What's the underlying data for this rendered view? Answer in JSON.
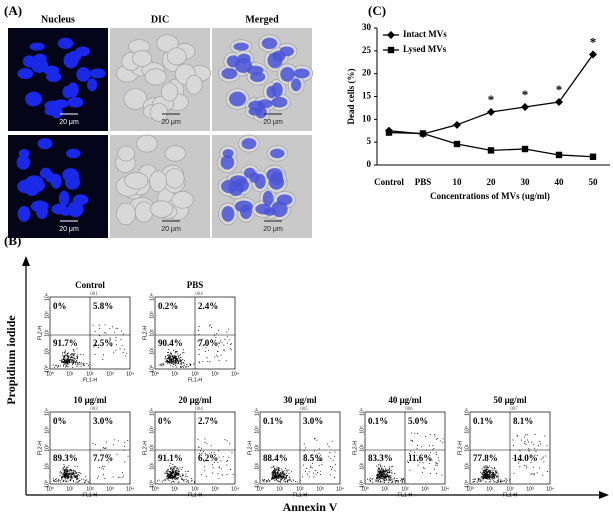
{
  "panel_a": {
    "label": "(A)",
    "columns": [
      "Nucleus",
      "DIC",
      "Merged"
    ],
    "scale_bar": "20 μm"
  },
  "panel_b": {
    "label": "(B)",
    "y_axis": "Propidium iodide",
    "x_axis": "Annexin V",
    "x_channel": "FL1-H",
    "y_channel": "FL2-H",
    "decade_ticks": [
      "10⁰",
      "10¹",
      "10²",
      "10³",
      "10⁴"
    ],
    "plots": [
      {
        "title": "Control",
        "id": "001",
        "quadrants": {
          "ul": "0%",
          "ur": "5.8%",
          "ll": "91.7%",
          "lr": "2.5%"
        }
      },
      {
        "title": "PBS",
        "id": "004",
        "quadrants": {
          "ul": "0.2%",
          "ur": "2.4%",
          "ll": "90.4%",
          "lr": "7.0%"
        }
      },
      {
        "title": "10 μg/ml",
        "id": "003",
        "quadrants": {
          "ul": "0%",
          "ur": "3.0%",
          "ll": "89.3%",
          "lr": "7.7%"
        }
      },
      {
        "title": "20 μg/ml",
        "id": "004",
        "quadrants": {
          "ul": "0%",
          "ur": "2.7%",
          "ll": "91.1%",
          "lr": "6.2%"
        }
      },
      {
        "title": "30 μg/ml",
        "id": "005",
        "quadrants": {
          "ul": "0.1%",
          "ur": "3.0%",
          "ll": "88.4%",
          "lr": "8.5%"
        }
      },
      {
        "title": "40 μg/ml",
        "id": "006",
        "quadrants": {
          "ul": "0.1%",
          "ur": "5.0%",
          "ll": "83.3%",
          "lr": "11.6%"
        }
      },
      {
        "title": "50 μg/ml",
        "id": "007",
        "quadrants": {
          "ul": "0.1%",
          "ur": "8.1%",
          "ll": "77.8%",
          "lr": "14.0%"
        }
      }
    ]
  },
  "chart_data": {
    "type": "line",
    "label": "(C)",
    "x_label": "Concentrations of MVs (ug/ml)",
    "y_label": "Dead cells (%)",
    "categories": [
      "Control",
      "PBS",
      "10",
      "20",
      "30",
      "40",
      "50"
    ],
    "series": [
      {
        "name": "Intact MVs",
        "color": "#000000",
        "marker": "diamond",
        "values": [
          7.5,
          6.8,
          8.8,
          11.6,
          12.7,
          13.8,
          24.2
        ]
      },
      {
        "name": "Lysed MVs",
        "color": "#000000",
        "marker": "square",
        "values": [
          7.1,
          6.9,
          4.6,
          3.2,
          3.5,
          2.2,
          1.8
        ]
      }
    ],
    "ylim": [
      0,
      30
    ],
    "yticks": [
      0,
      5,
      10,
      15,
      20,
      25,
      30
    ],
    "legend": "upper left",
    "annotations": [
      {
        "text": "*",
        "category": "20"
      },
      {
        "text": "*",
        "category": "30"
      },
      {
        "text": "*",
        "category": "40"
      },
      {
        "text": "*",
        "category": "50"
      }
    ]
  }
}
